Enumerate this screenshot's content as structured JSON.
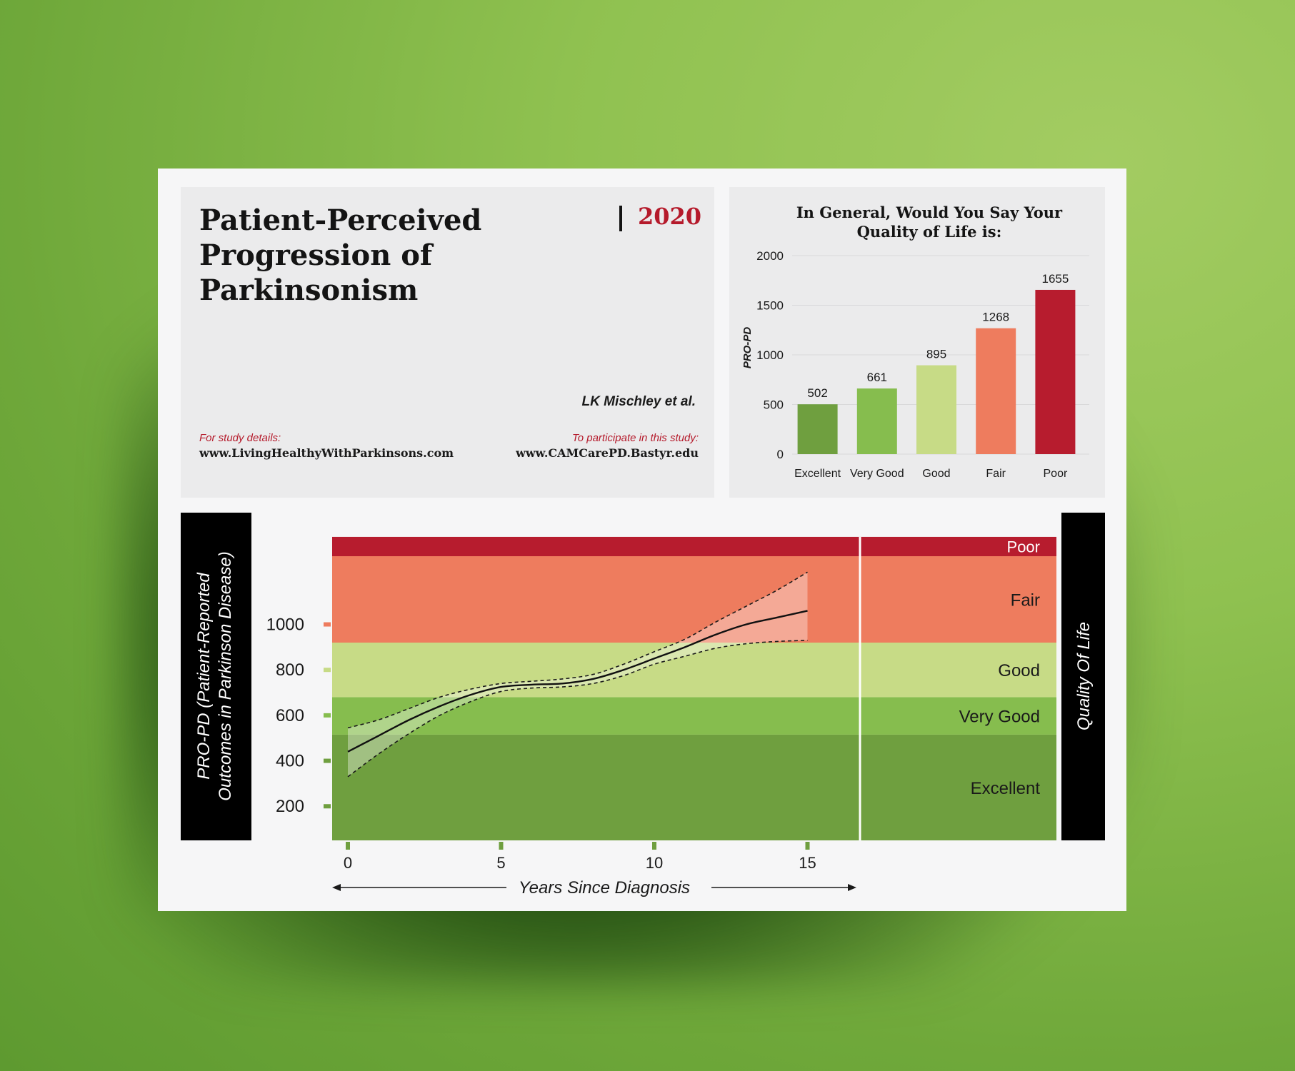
{
  "header": {
    "title": "Patient-Perceived Progression of Parkinsonism",
    "year": "2020",
    "authors": "LK Mischley et al.",
    "study_details_label": "For study details:",
    "study_details_url": "www.LivingHealthyWithParkinsons.com",
    "participate_label": "To participate in this study:",
    "participate_url": "www.CAMCarePD.Bastyr.edu"
  },
  "colors": {
    "excellent": "#6f9f3f",
    "very_good": "#86bd4e",
    "good": "#c7db86",
    "fair": "#ee7c5e",
    "poor": "#b71c2e"
  },
  "chart_data": [
    {
      "type": "bar",
      "title": "In General, Would You Say Your Quality of Life is:",
      "ylabel": "PRO-PD",
      "xlabel": "",
      "categories": [
        "Excellent",
        "Very Good",
        "Good",
        "Fair",
        "Poor"
      ],
      "values": [
        502,
        661,
        895,
        1268,
        1655
      ],
      "data_labels": [
        "502",
        "661",
        "895",
        "1268",
        "1655"
      ],
      "yticks": [
        0,
        500,
        1000,
        1500,
        2000
      ],
      "ylim": [
        0,
        2000
      ],
      "grid": true
    },
    {
      "type": "line",
      "title": "",
      "xlabel": "Years Since Diagnosis",
      "ylabel": "PRO-PD (Patient-Reported Outcomes in Parkinson Disease)",
      "right_label": "Quality Of Life",
      "xlim": [
        0,
        17
      ],
      "ylim": [
        50,
        1300
      ],
      "xticks": [
        0,
        5,
        10,
        15
      ],
      "yticks": [
        200,
        400,
        600,
        800,
        1000
      ],
      "bands": [
        {
          "name": "Excellent",
          "from": 50,
          "to": 515
        },
        {
          "name": "Very Good",
          "from": 515,
          "to": 680
        },
        {
          "name": "Good",
          "from": 680,
          "to": 920
        },
        {
          "name": "Fair",
          "from": 920,
          "to": 1300
        },
        {
          "name": "Poor",
          "from": 1300,
          "to": 1385
        }
      ],
      "series": [
        {
          "x": [
            0,
            1,
            2,
            3,
            4,
            5,
            6,
            7,
            8,
            9,
            10,
            11,
            12,
            13,
            14,
            15
          ],
          "y": [
            440,
            510,
            580,
            640,
            690,
            725,
            735,
            740,
            760,
            800,
            850,
            900,
            955,
            1000,
            1030,
            1060
          ],
          "upper": [
            545,
            580,
            630,
            680,
            715,
            740,
            750,
            760,
            780,
            825,
            880,
            935,
            1010,
            1080,
            1150,
            1230
          ],
          "lower": [
            330,
            430,
            520,
            600,
            660,
            705,
            720,
            725,
            740,
            775,
            825,
            860,
            895,
            915,
            925,
            930
          ]
        }
      ]
    }
  ]
}
